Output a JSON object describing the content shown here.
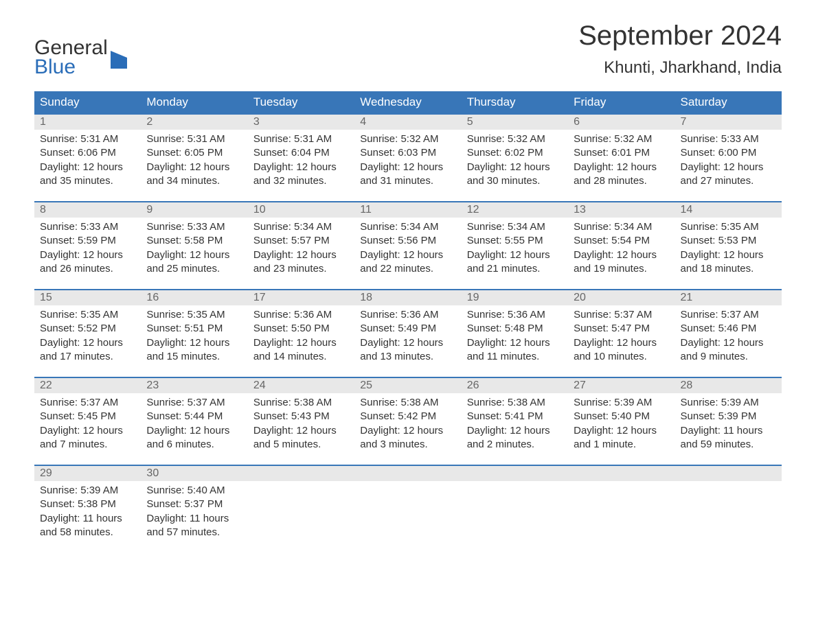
{
  "logo": {
    "text1": "General",
    "text2": "Blue",
    "accent_color": "#2a6db8"
  },
  "title": "September 2024",
  "location": "Khunti, Jharkhand, India",
  "day_headers": [
    "Sunday",
    "Monday",
    "Tuesday",
    "Wednesday",
    "Thursday",
    "Friday",
    "Saturday"
  ],
  "style": {
    "header_bg": "#3876b8",
    "header_fg": "#ffffff",
    "daynum_bg": "#e8e8e8",
    "daynum_fg": "#666666",
    "week_border": "#3876b8",
    "text_color": "#333333",
    "body_bg": "#ffffff"
  },
  "weeks": [
    [
      {
        "n": "1",
        "sr": "Sunrise: 5:31 AM",
        "ss": "Sunset: 6:06 PM",
        "d1": "Daylight: 12 hours",
        "d2": "and 35 minutes."
      },
      {
        "n": "2",
        "sr": "Sunrise: 5:31 AM",
        "ss": "Sunset: 6:05 PM",
        "d1": "Daylight: 12 hours",
        "d2": "and 34 minutes."
      },
      {
        "n": "3",
        "sr": "Sunrise: 5:31 AM",
        "ss": "Sunset: 6:04 PM",
        "d1": "Daylight: 12 hours",
        "d2": "and 32 minutes."
      },
      {
        "n": "4",
        "sr": "Sunrise: 5:32 AM",
        "ss": "Sunset: 6:03 PM",
        "d1": "Daylight: 12 hours",
        "d2": "and 31 minutes."
      },
      {
        "n": "5",
        "sr": "Sunrise: 5:32 AM",
        "ss": "Sunset: 6:02 PM",
        "d1": "Daylight: 12 hours",
        "d2": "and 30 minutes."
      },
      {
        "n": "6",
        "sr": "Sunrise: 5:32 AM",
        "ss": "Sunset: 6:01 PM",
        "d1": "Daylight: 12 hours",
        "d2": "and 28 minutes."
      },
      {
        "n": "7",
        "sr": "Sunrise: 5:33 AM",
        "ss": "Sunset: 6:00 PM",
        "d1": "Daylight: 12 hours",
        "d2": "and 27 minutes."
      }
    ],
    [
      {
        "n": "8",
        "sr": "Sunrise: 5:33 AM",
        "ss": "Sunset: 5:59 PM",
        "d1": "Daylight: 12 hours",
        "d2": "and 26 minutes."
      },
      {
        "n": "9",
        "sr": "Sunrise: 5:33 AM",
        "ss": "Sunset: 5:58 PM",
        "d1": "Daylight: 12 hours",
        "d2": "and 25 minutes."
      },
      {
        "n": "10",
        "sr": "Sunrise: 5:34 AM",
        "ss": "Sunset: 5:57 PM",
        "d1": "Daylight: 12 hours",
        "d2": "and 23 minutes."
      },
      {
        "n": "11",
        "sr": "Sunrise: 5:34 AM",
        "ss": "Sunset: 5:56 PM",
        "d1": "Daylight: 12 hours",
        "d2": "and 22 minutes."
      },
      {
        "n": "12",
        "sr": "Sunrise: 5:34 AM",
        "ss": "Sunset: 5:55 PM",
        "d1": "Daylight: 12 hours",
        "d2": "and 21 minutes."
      },
      {
        "n": "13",
        "sr": "Sunrise: 5:34 AM",
        "ss": "Sunset: 5:54 PM",
        "d1": "Daylight: 12 hours",
        "d2": "and 19 minutes."
      },
      {
        "n": "14",
        "sr": "Sunrise: 5:35 AM",
        "ss": "Sunset: 5:53 PM",
        "d1": "Daylight: 12 hours",
        "d2": "and 18 minutes."
      }
    ],
    [
      {
        "n": "15",
        "sr": "Sunrise: 5:35 AM",
        "ss": "Sunset: 5:52 PM",
        "d1": "Daylight: 12 hours",
        "d2": "and 17 minutes."
      },
      {
        "n": "16",
        "sr": "Sunrise: 5:35 AM",
        "ss": "Sunset: 5:51 PM",
        "d1": "Daylight: 12 hours",
        "d2": "and 15 minutes."
      },
      {
        "n": "17",
        "sr": "Sunrise: 5:36 AM",
        "ss": "Sunset: 5:50 PM",
        "d1": "Daylight: 12 hours",
        "d2": "and 14 minutes."
      },
      {
        "n": "18",
        "sr": "Sunrise: 5:36 AM",
        "ss": "Sunset: 5:49 PM",
        "d1": "Daylight: 12 hours",
        "d2": "and 13 minutes."
      },
      {
        "n": "19",
        "sr": "Sunrise: 5:36 AM",
        "ss": "Sunset: 5:48 PM",
        "d1": "Daylight: 12 hours",
        "d2": "and 11 minutes."
      },
      {
        "n": "20",
        "sr": "Sunrise: 5:37 AM",
        "ss": "Sunset: 5:47 PM",
        "d1": "Daylight: 12 hours",
        "d2": "and 10 minutes."
      },
      {
        "n": "21",
        "sr": "Sunrise: 5:37 AM",
        "ss": "Sunset: 5:46 PM",
        "d1": "Daylight: 12 hours",
        "d2": "and 9 minutes."
      }
    ],
    [
      {
        "n": "22",
        "sr": "Sunrise: 5:37 AM",
        "ss": "Sunset: 5:45 PM",
        "d1": "Daylight: 12 hours",
        "d2": "and 7 minutes."
      },
      {
        "n": "23",
        "sr": "Sunrise: 5:37 AM",
        "ss": "Sunset: 5:44 PM",
        "d1": "Daylight: 12 hours",
        "d2": "and 6 minutes."
      },
      {
        "n": "24",
        "sr": "Sunrise: 5:38 AM",
        "ss": "Sunset: 5:43 PM",
        "d1": "Daylight: 12 hours",
        "d2": "and 5 minutes."
      },
      {
        "n": "25",
        "sr": "Sunrise: 5:38 AM",
        "ss": "Sunset: 5:42 PM",
        "d1": "Daylight: 12 hours",
        "d2": "and 3 minutes."
      },
      {
        "n": "26",
        "sr": "Sunrise: 5:38 AM",
        "ss": "Sunset: 5:41 PM",
        "d1": "Daylight: 12 hours",
        "d2": "and 2 minutes."
      },
      {
        "n": "27",
        "sr": "Sunrise: 5:39 AM",
        "ss": "Sunset: 5:40 PM",
        "d1": "Daylight: 12 hours",
        "d2": "and 1 minute."
      },
      {
        "n": "28",
        "sr": "Sunrise: 5:39 AM",
        "ss": "Sunset: 5:39 PM",
        "d1": "Daylight: 11 hours",
        "d2": "and 59 minutes."
      }
    ],
    [
      {
        "n": "29",
        "sr": "Sunrise: 5:39 AM",
        "ss": "Sunset: 5:38 PM",
        "d1": "Daylight: 11 hours",
        "d2": "and 58 minutes."
      },
      {
        "n": "30",
        "sr": "Sunrise: 5:40 AM",
        "ss": "Sunset: 5:37 PM",
        "d1": "Daylight: 11 hours",
        "d2": "and 57 minutes."
      },
      null,
      null,
      null,
      null,
      null
    ]
  ]
}
